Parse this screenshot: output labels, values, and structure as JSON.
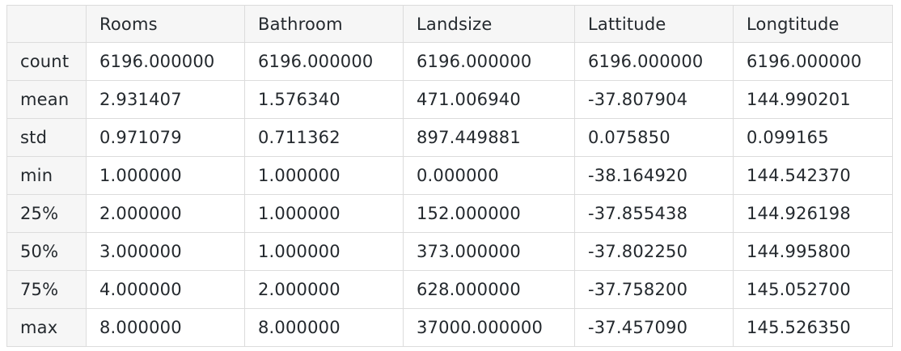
{
  "table": {
    "columns": [
      "",
      "Rooms",
      "Bathroom",
      "Landsize",
      "Lattitude",
      "Longtitude"
    ],
    "rows": [
      {
        "label": "count",
        "values": [
          "6196.000000",
          "6196.000000",
          "6196.000000",
          "6196.000000",
          "6196.000000"
        ]
      },
      {
        "label": "mean",
        "values": [
          "2.931407",
          "1.576340",
          "471.006940",
          "-37.807904",
          "144.990201"
        ]
      },
      {
        "label": "std",
        "values": [
          "0.971079",
          "0.711362",
          "897.449881",
          "0.075850",
          "0.099165"
        ]
      },
      {
        "label": "min",
        "values": [
          "1.000000",
          "1.000000",
          "0.000000",
          "-38.164920",
          "144.542370"
        ]
      },
      {
        "label": "25%",
        "values": [
          "2.000000",
          "1.000000",
          "152.000000",
          "-37.855438",
          "144.926198"
        ]
      },
      {
        "label": "50%",
        "values": [
          "3.000000",
          "1.000000",
          "373.000000",
          "-37.802250",
          "144.995800"
        ]
      },
      {
        "label": "75%",
        "values": [
          "4.000000",
          "2.000000",
          "628.000000",
          "-37.758200",
          "145.052700"
        ]
      },
      {
        "label": "max",
        "values": [
          "8.000000",
          "8.000000",
          "37000.000000",
          "-37.457090",
          "145.526350"
        ]
      }
    ]
  },
  "colors": {
    "header_background": "#f6f6f6",
    "cell_background": "#ffffff",
    "border": "#dcdcdc",
    "text": "#24292e"
  }
}
